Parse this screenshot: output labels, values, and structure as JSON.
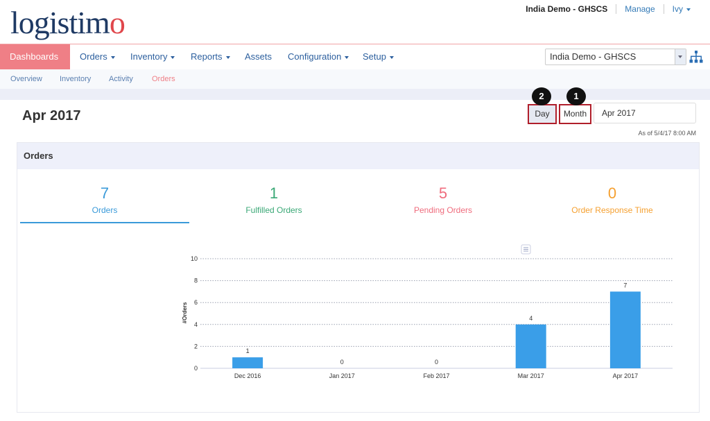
{
  "brand": {
    "logo_prefix": "logist",
    "logo_mid": "i",
    "logo_suffix": "m",
    "logo_end": "o"
  },
  "top_links": {
    "domain": "India Demo - GHSCS",
    "manage": "Manage",
    "user": "Ivy"
  },
  "nav": {
    "items": [
      {
        "label": "Dashboards",
        "active": true,
        "caret": true
      },
      {
        "label": "Orders",
        "active": false,
        "caret": true
      },
      {
        "label": "Inventory",
        "active": false,
        "caret": true
      },
      {
        "label": "Reports",
        "active": false,
        "caret": true
      },
      {
        "label": "Assets",
        "active": false,
        "caret": false
      },
      {
        "label": "Configuration",
        "active": false,
        "caret": true
      },
      {
        "label": "Setup",
        "active": false,
        "caret": true
      }
    ],
    "domain_select": "India Demo - GHSCS",
    "hierarchy_icon": "sitemap-icon"
  },
  "subnav": {
    "items": [
      "Overview",
      "Inventory",
      "Activity",
      "Orders"
    ],
    "active": "Orders"
  },
  "page": {
    "title": "Apr 2017",
    "day_button": "Day",
    "month_button": "Month",
    "date_value": "Apr 2017",
    "as_of": "As of 5/4/17 8:00 AM",
    "markers": [
      "2",
      "1"
    ]
  },
  "panel": {
    "title": "Orders",
    "stats": [
      {
        "value": "7",
        "label": "Orders",
        "color": "#3a9ad9"
      },
      {
        "value": "1",
        "label": "Fulfilled Orders",
        "color": "#3aa876"
      },
      {
        "value": "5",
        "label": "Pending Orders",
        "color": "#ef6c7d"
      },
      {
        "value": "0",
        "label": "Order Response Time",
        "color": "#f5a030"
      }
    ]
  },
  "colors": {
    "accent": "#ef7f86",
    "bar": "#3a9ee8",
    "nav_text": "#2c5f9e"
  },
  "chart_data": {
    "type": "bar",
    "categories": [
      "Dec 2016",
      "Jan 2017",
      "Feb 2017",
      "Mar 2017",
      "Apr 2017"
    ],
    "values": [
      1,
      0,
      0,
      4,
      7
    ],
    "title": "",
    "xlabel": "",
    "ylabel": "#Orders",
    "ylim": [
      0,
      10
    ],
    "yticks": [
      0,
      2,
      4,
      6,
      8,
      10
    ],
    "grid": true,
    "legend": "none",
    "menu_icon": "chart-menu-icon"
  }
}
